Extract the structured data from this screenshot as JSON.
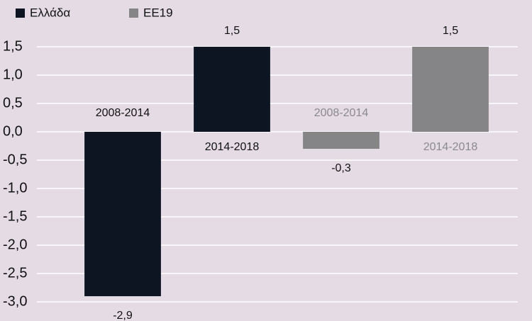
{
  "chart_data": {
    "type": "bar",
    "categories": [
      "2008-2014",
      "2014-2018",
      "2008-2014",
      "2014-2018"
    ],
    "series": [
      {
        "name": "Ελλάδα",
        "color": "#0d1523",
        "label_color": "#111111",
        "values": [
          -2.9,
          1.5,
          null,
          null
        ],
        "value_labels": [
          "-2,9",
          "1,5",
          null,
          null
        ]
      },
      {
        "name": "ΕΕ19",
        "color": "#858588",
        "label_color": "#8a8a8e",
        "values": [
          null,
          null,
          -0.3,
          1.5
        ],
        "value_labels": [
          null,
          null,
          "-0,3",
          "1,5"
        ]
      }
    ],
    "ylim": [
      -3.0,
      1.5
    ],
    "yticks": [
      {
        "value": 1.5,
        "label": "1,5"
      },
      {
        "value": 1.0,
        "label": "1,0"
      },
      {
        "value": 0.5,
        "label": "0,5"
      },
      {
        "value": 0.0,
        "label": "0,0"
      },
      {
        "value": -0.5,
        "label": "-0,5"
      },
      {
        "value": -1.0,
        "label": "-1,0"
      },
      {
        "value": -1.5,
        "label": "-1,5"
      },
      {
        "value": -2.0,
        "label": "-2,0"
      },
      {
        "value": -2.5,
        "label": "-2,5"
      },
      {
        "value": -3.0,
        "label": "-3,0"
      }
    ],
    "grid": true
  }
}
